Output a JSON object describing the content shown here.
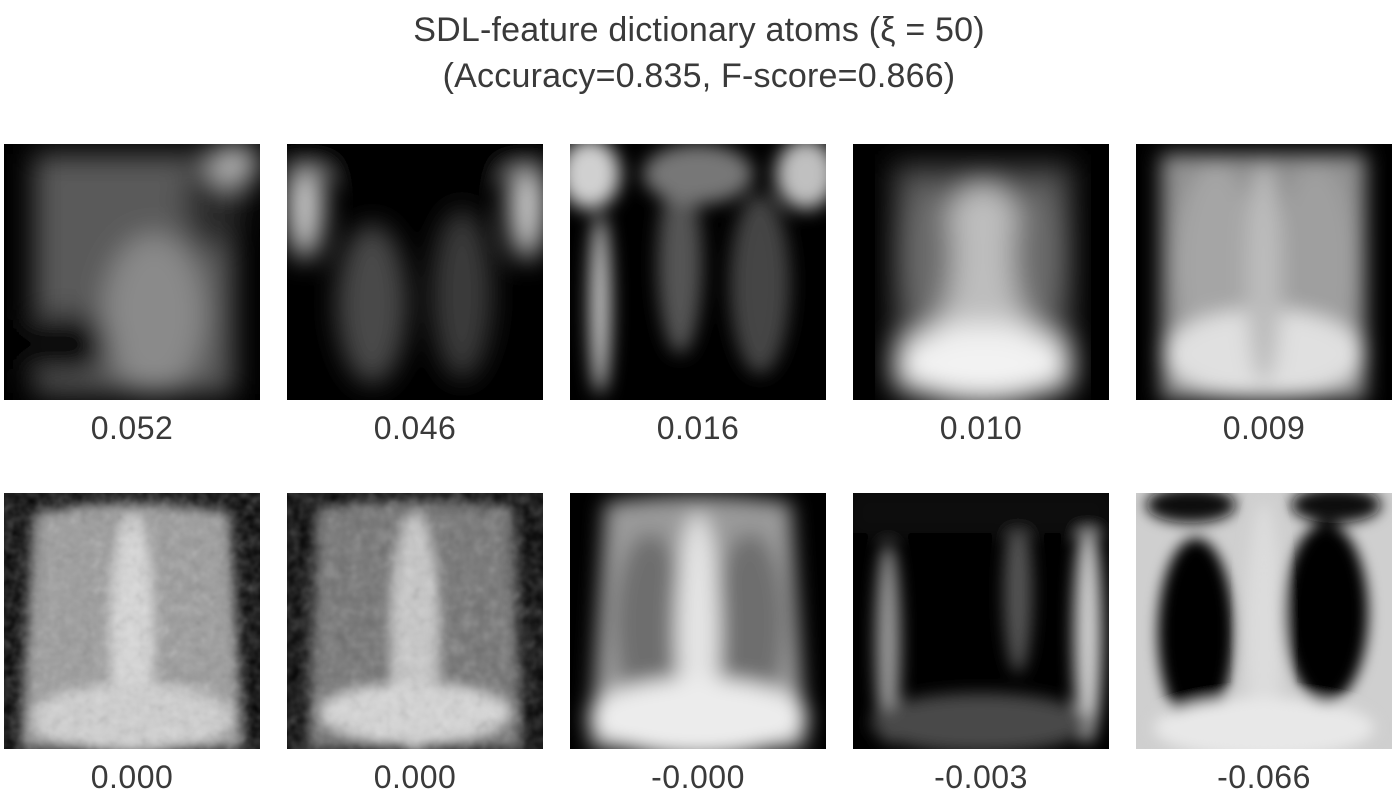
{
  "figure": {
    "title_line1": "SDL-feature dictionary atoms (ξ = 50)",
    "title_line2": "(Accuracy=0.835, F-score=0.866)",
    "atoms": [
      {
        "weight": "0.052"
      },
      {
        "weight": "0.046"
      },
      {
        "weight": "0.016"
      },
      {
        "weight": "0.010"
      },
      {
        "weight": "0.009"
      },
      {
        "weight": "0.000"
      },
      {
        "weight": "0.000"
      },
      {
        "weight": "-0.000"
      },
      {
        "weight": "-0.003"
      },
      {
        "weight": "-0.066"
      }
    ]
  }
}
